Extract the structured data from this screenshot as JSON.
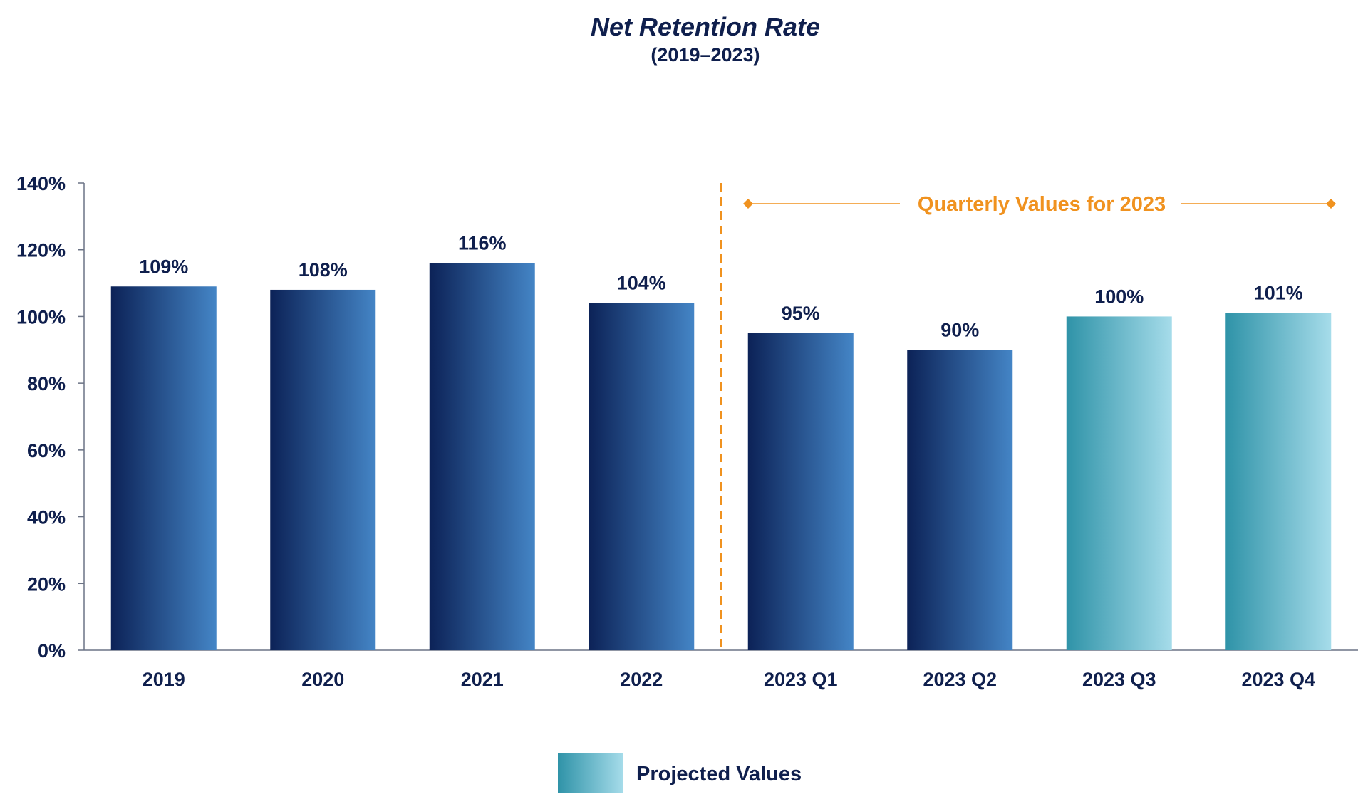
{
  "colors": {
    "title": "#0f1f4d",
    "axis_text": "#0f1f4d",
    "actual_bar_dark": "#0c2257",
    "actual_bar_light": "#4485c6",
    "projected_bar_dark": "#2f93a8",
    "projected_bar_light": "#a6dcea",
    "accent": "#f0921f",
    "axis_line": "#6b7385"
  },
  "chart_data": {
    "type": "bar",
    "title": "Net Retention Rate",
    "subtitle": "(2019–2023)",
    "categories": [
      "2019",
      "2020",
      "2021",
      "2022",
      "2023 Q1",
      "2023 Q2",
      "2023 Q3",
      "2023 Q4"
    ],
    "values": [
      109,
      108,
      116,
      104,
      95,
      90,
      100,
      101
    ],
    "value_labels": [
      "109%",
      "108%",
      "116%",
      "104%",
      "95%",
      "90%",
      "100%",
      "101%"
    ],
    "projected": [
      false,
      false,
      false,
      false,
      false,
      false,
      true,
      true
    ],
    "ylim": [
      0,
      140
    ],
    "yticks": [
      0,
      20,
      40,
      60,
      80,
      100,
      120,
      140
    ],
    "ytick_labels": [
      "0%",
      "20%",
      "40%",
      "60%",
      "80%",
      "100%",
      "120%",
      "140%"
    ],
    "xlabel": "",
    "ylabel": "",
    "grid": false,
    "annotation": "Quarterly Values for 2023",
    "legend": [
      {
        "label": "Projected Values",
        "position": "bottom-center"
      }
    ]
  }
}
